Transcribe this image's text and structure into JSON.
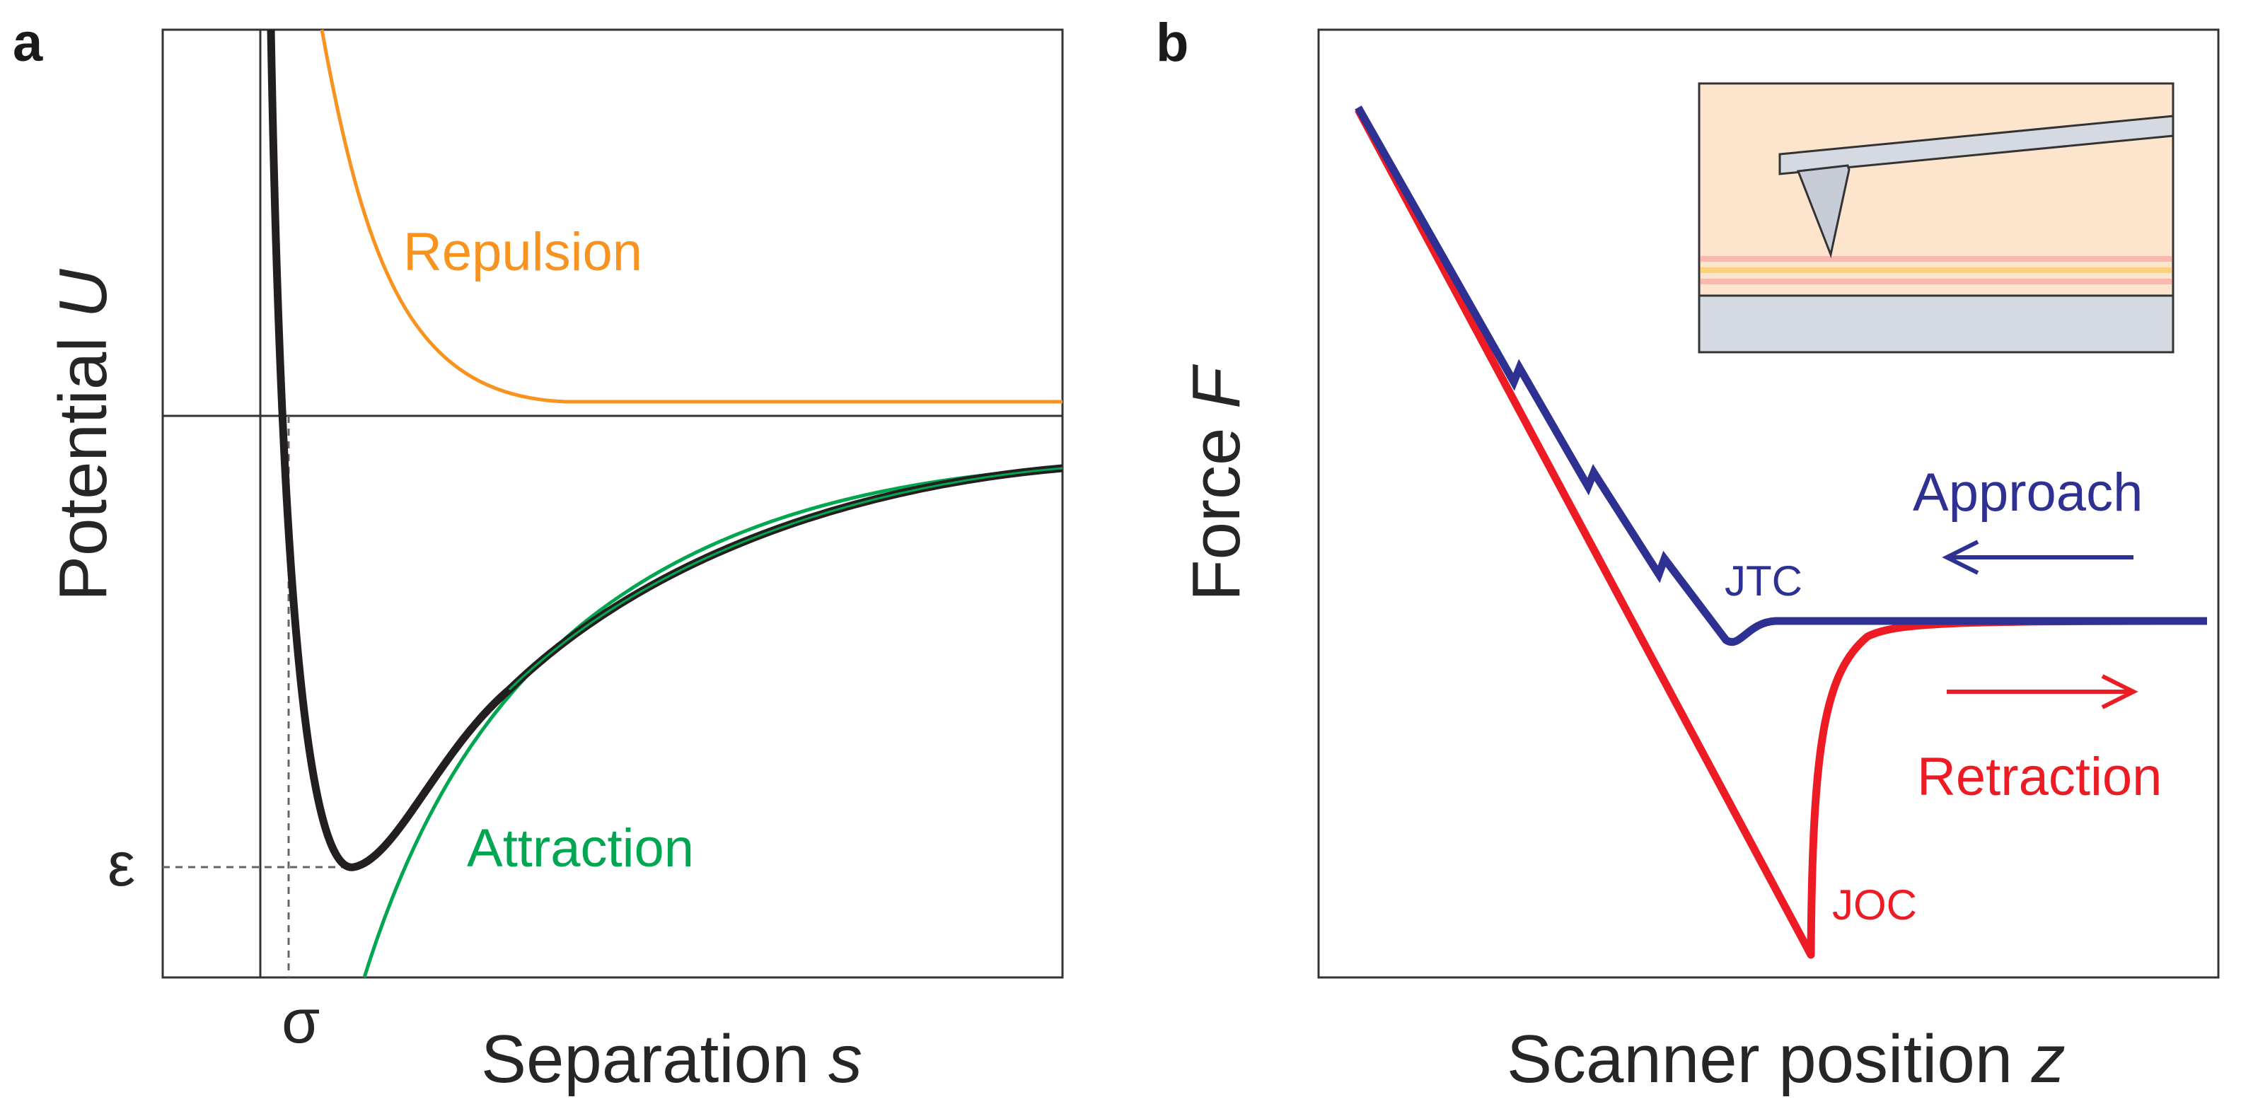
{
  "panel_a": {
    "label": "a",
    "y_axis_prefix": "Potential ",
    "y_axis_var": "U",
    "x_axis_prefix": "Separation ",
    "x_axis_var": "s",
    "epsilon_symbol": "ε",
    "sigma_symbol": "σ",
    "repulsion_label": "Repulsion",
    "attraction_label": "Attraction",
    "colors": {
      "repulsion": "#f7931e",
      "attraction": "#00a650",
      "total": "#231f20"
    }
  },
  "panel_b": {
    "label": "b",
    "y_axis_prefix": "Force ",
    "y_axis_var": "F",
    "x_axis_prefix": "Scanner position ",
    "x_axis_var": "z",
    "approach_label": "Approach",
    "retraction_label": "Retraction",
    "jtc_label": "JTC",
    "joc_label": "JOC",
    "colors": {
      "approach": "#2e3192",
      "retraction": "#ed1c24"
    }
  }
}
